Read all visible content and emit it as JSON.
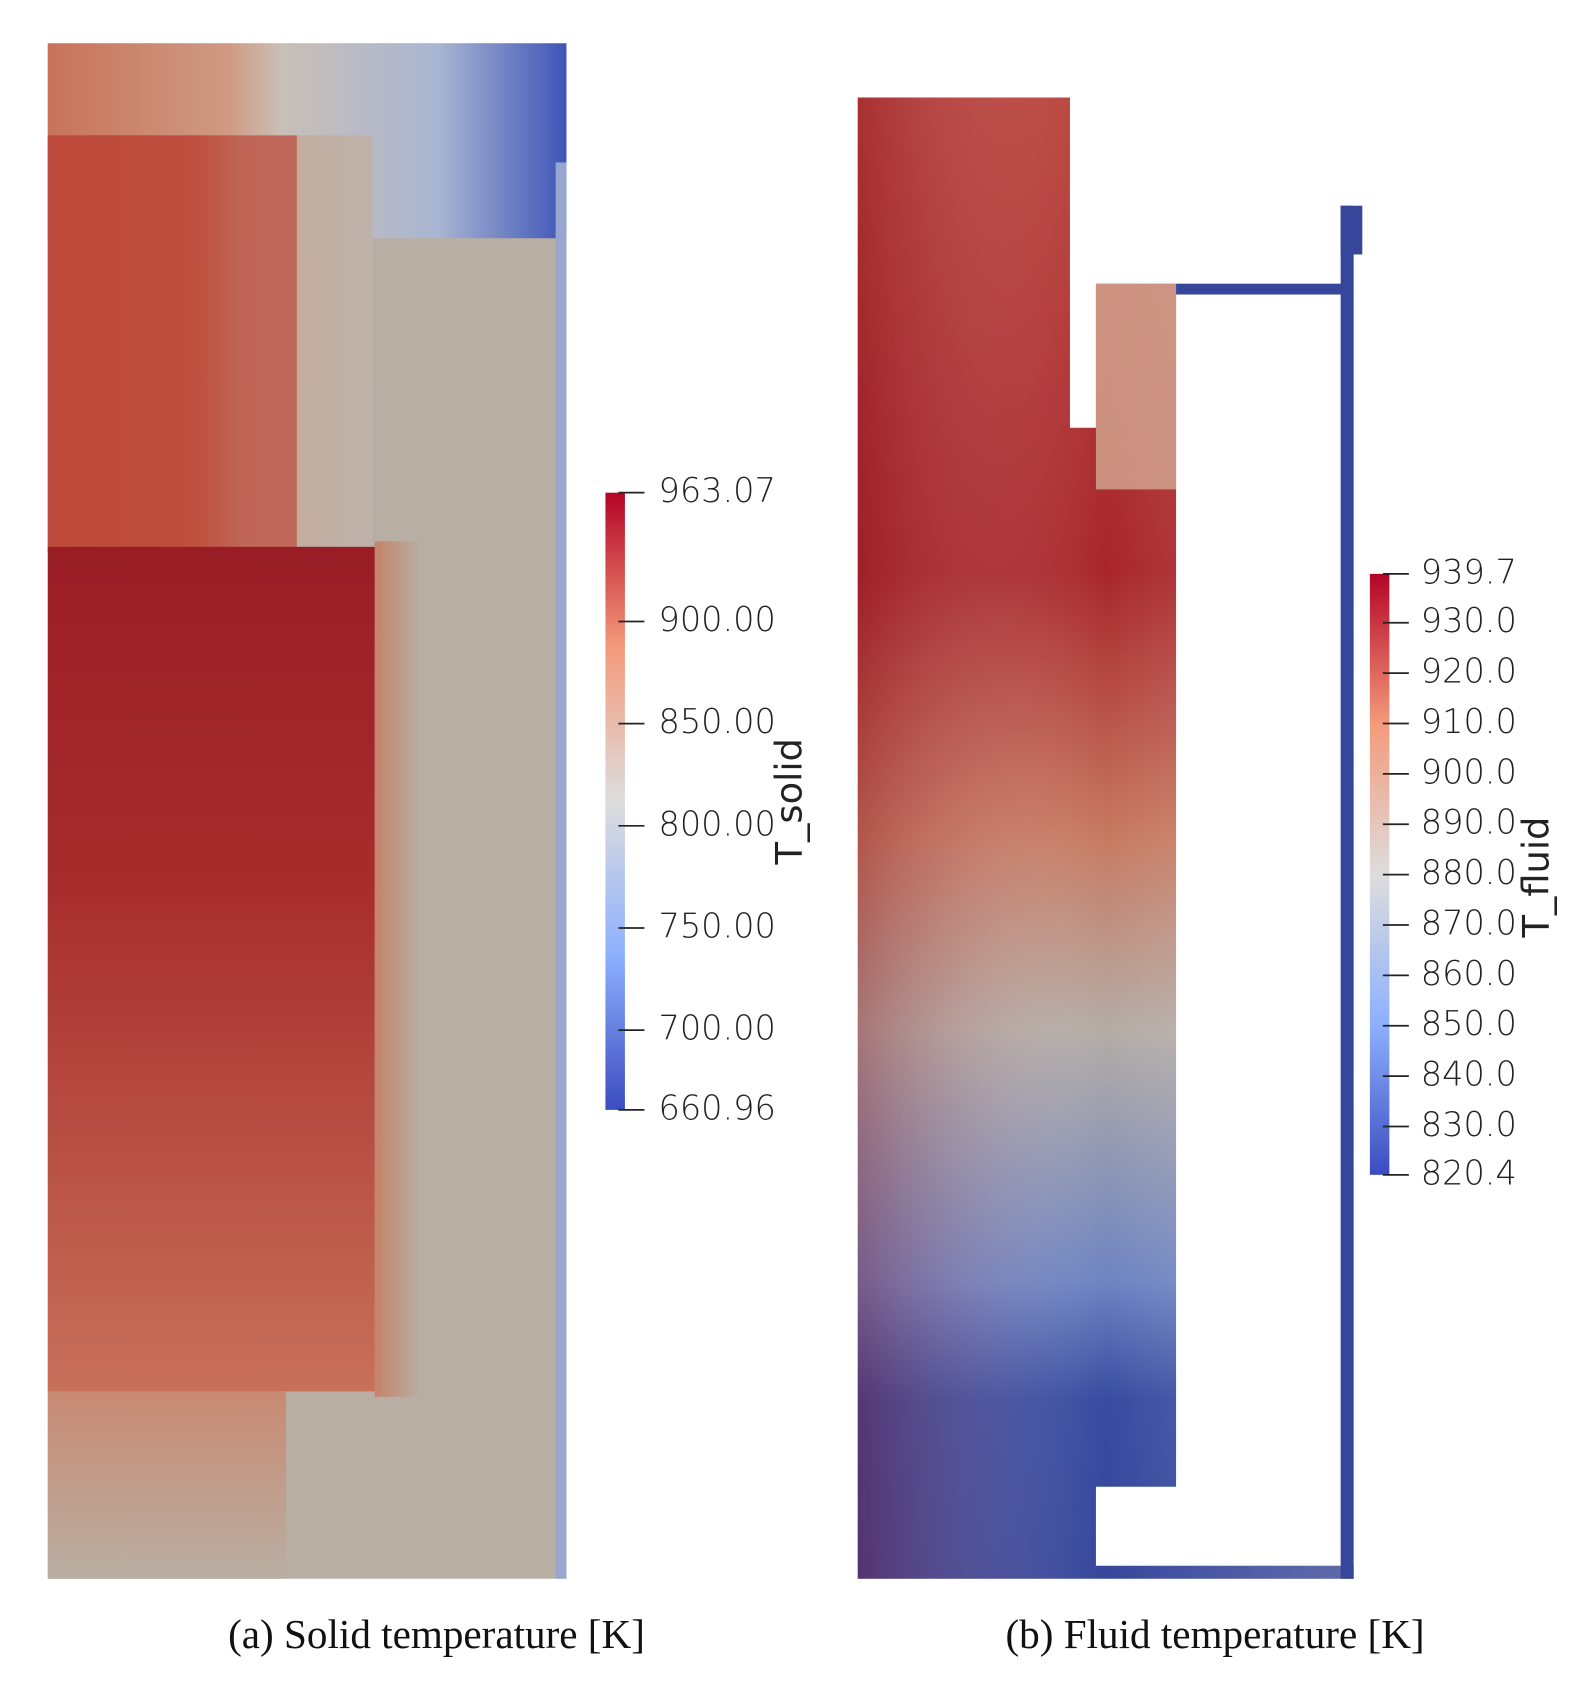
{
  "figures": [
    {
      "caption": "(a) Solid temperature [K]",
      "colorbar": {
        "title": "T_solid",
        "range": [
          660.96,
          963.07
        ],
        "ticks": [
          {
            "value": 963.07,
            "label": "963.07"
          },
          {
            "value": 900,
            "label": "900.00"
          },
          {
            "value": 850,
            "label": "850.00"
          },
          {
            "value": 800,
            "label": "800.00"
          },
          {
            "value": 750,
            "label": "750.00"
          },
          {
            "value": 700,
            "label": "700.00"
          },
          {
            "value": 660.96,
            "label": "660.96"
          }
        ]
      }
    },
    {
      "caption": "(b) Fluid temperature [K]",
      "colorbar": {
        "title": "T_fluid",
        "range": [
          820.4,
          939.7
        ],
        "ticks": [
          {
            "value": 939.7,
            "label": "939.7"
          },
          {
            "value": 930,
            "label": "930.0"
          },
          {
            "value": 920,
            "label": "920.0"
          },
          {
            "value": 910,
            "label": "910.0"
          },
          {
            "value": 900,
            "label": "900.0"
          },
          {
            "value": 890,
            "label": "890.0"
          },
          {
            "value": 880,
            "label": "880.0"
          },
          {
            "value": 870,
            "label": "870.0"
          },
          {
            "value": 860,
            "label": "860.0"
          },
          {
            "value": 850,
            "label": "850.0"
          },
          {
            "value": 840,
            "label": "840.0"
          },
          {
            "value": 830,
            "label": "830.0"
          },
          {
            "value": 820.4,
            "label": "820.4"
          }
        ]
      }
    }
  ]
}
